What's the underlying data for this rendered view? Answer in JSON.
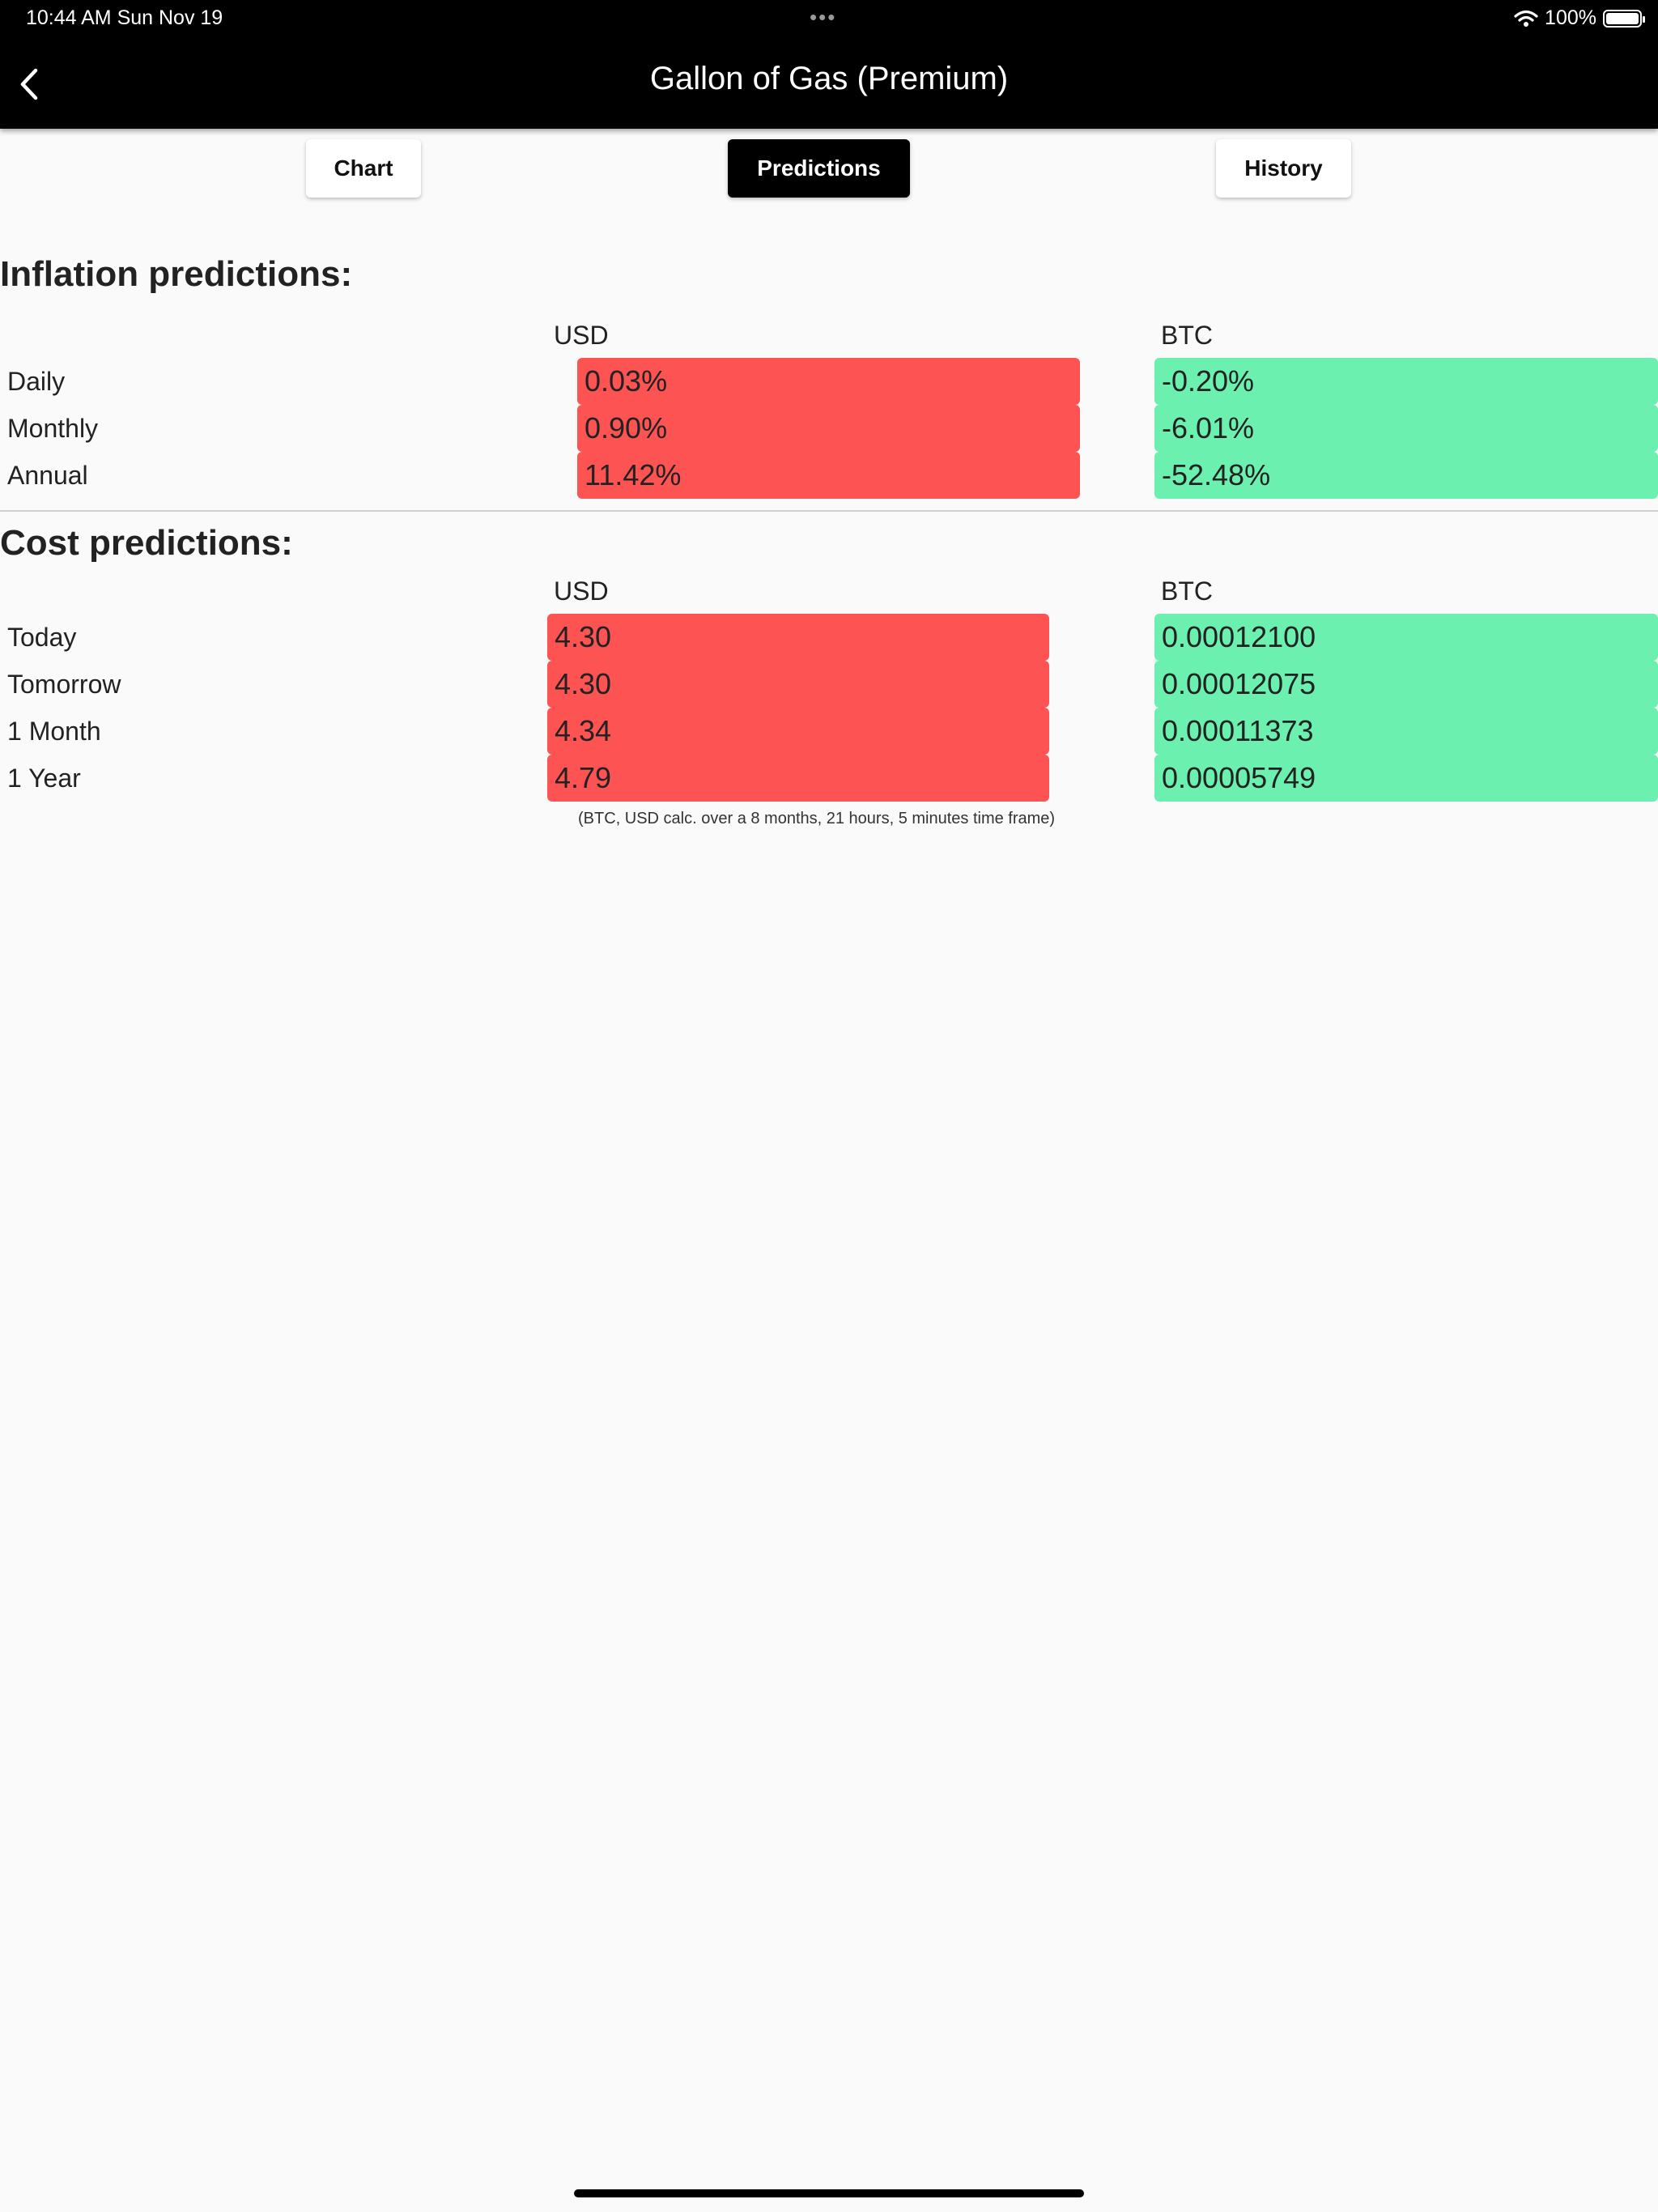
{
  "status_bar": {
    "time": "10:44 AM   Sun Nov 19",
    "dots": "•••",
    "battery": "100%"
  },
  "header": {
    "title": "Gallon of Gas (Premium)"
  },
  "tabs": [
    {
      "label": "Chart",
      "active": false
    },
    {
      "label": "Predictions",
      "active": true
    },
    {
      "label": "History",
      "active": false
    }
  ],
  "inflation": {
    "title": "Inflation predictions:",
    "columns": [
      "USD",
      "BTC"
    ],
    "rows": [
      {
        "label": "Daily",
        "usd": "0.03%",
        "btc": "-0.20%"
      },
      {
        "label": "Monthly",
        "usd": "0.90%",
        "btc": "-6.01%"
      },
      {
        "label": "Annual",
        "usd": "11.42%",
        "btc": "-52.48%"
      }
    ]
  },
  "cost": {
    "title": "Cost predictions:",
    "columns": [
      "USD",
      "BTC"
    ],
    "rows": [
      {
        "label": "Today",
        "usd": "4.30",
        "btc": "0.00012100"
      },
      {
        "label": "Tomorrow",
        "usd": "4.30",
        "btc": "0.00012075"
      },
      {
        "label": "1 Month",
        "usd": "4.34",
        "btc": "0.00011373"
      },
      {
        "label": "1 Year",
        "usd": "4.79",
        "btc": "0.00005749"
      }
    ]
  },
  "footnote": "(BTC, USD calc. over a 8 months, 21 hours, 5 minutes time frame)",
  "colors": {
    "increase": "#fd5353",
    "decrease": "#6cf0b0",
    "header_bg": "#000000",
    "page_bg": "#fafafa"
  }
}
